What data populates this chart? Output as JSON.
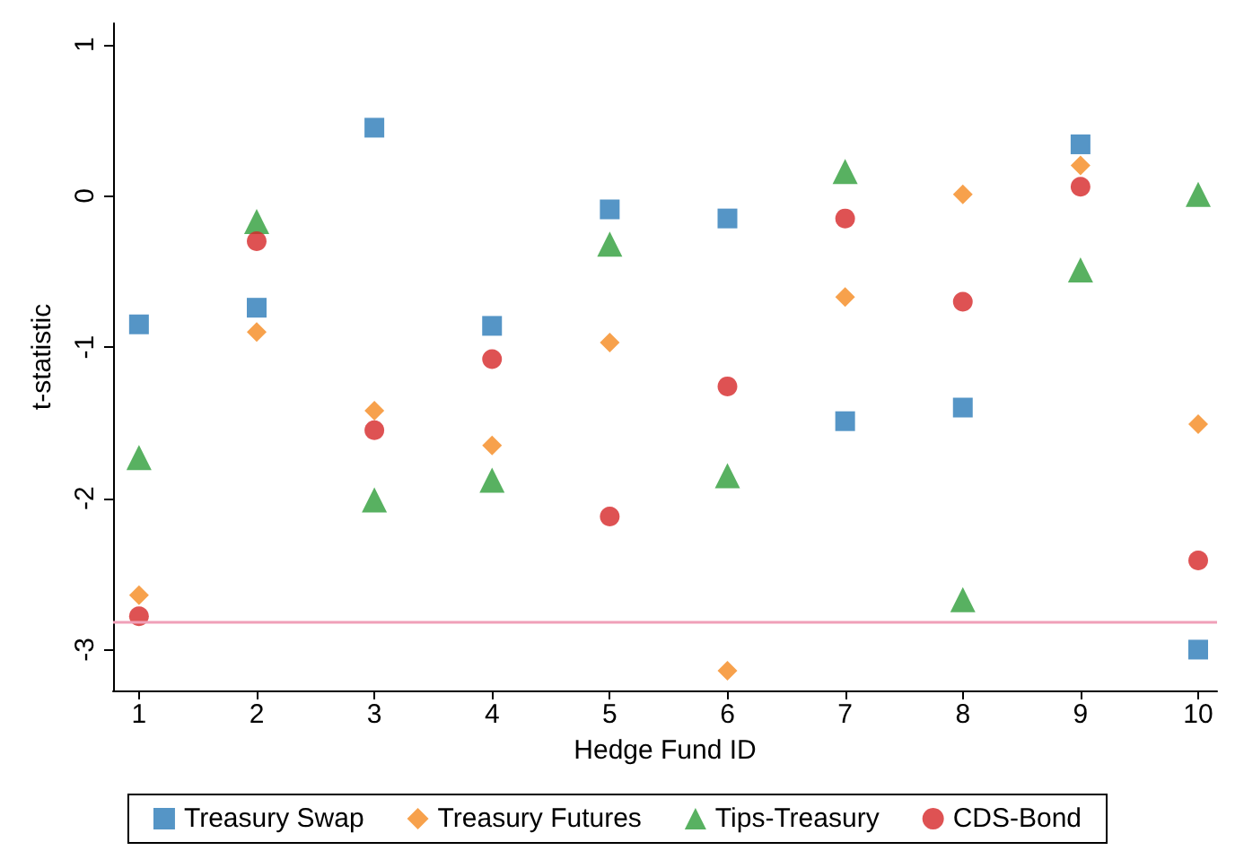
{
  "chart_data": {
    "type": "scatter",
    "xlabel": "Hedge Fund ID",
    "ylabel": "t-statistic",
    "x": [
      1,
      2,
      3,
      4,
      5,
      6,
      7,
      8,
      9,
      10
    ],
    "series": [
      {
        "name": "Treasury Swap",
        "color": "#2a7ab8",
        "marker": "square",
        "values": [
          -0.85,
          -0.74,
          0.45,
          -0.86,
          -0.09,
          -0.15,
          -1.49,
          -1.4,
          0.34,
          -3.0
        ]
      },
      {
        "name": "Treasury Futures",
        "color": "#f58a1f",
        "marker": "diamond",
        "values": [
          -2.64,
          -0.9,
          -1.42,
          -1.65,
          -0.97,
          -3.14,
          -0.67,
          0.01,
          0.2,
          -1.51
        ]
      },
      {
        "name": "Tips-Treasury",
        "color": "#2e9e3a",
        "marker": "triangle",
        "values": [
          -1.73,
          -0.17,
          -2.01,
          -1.88,
          -0.32,
          -1.85,
          0.16,
          -2.67,
          -0.49,
          0.01
        ]
      },
      {
        "name": "CDS-Bond",
        "color": "#d62728",
        "marker": "circle",
        "values": [
          -2.78,
          -0.3,
          -1.55,
          -1.08,
          -2.12,
          -1.26,
          -0.15,
          -0.7,
          0.06,
          -2.41
        ]
      }
    ],
    "xlim": [
      0.78,
      10.16
    ],
    "xticks": [
      1,
      2,
      3,
      4,
      5,
      6,
      7,
      8,
      9,
      10
    ],
    "ylim": [
      -3.27,
      1.14
    ],
    "yticks": [
      -3,
      -2,
      -1,
      0,
      1
    ],
    "ref_lines": [
      {
        "axis": "y",
        "value": -2.82,
        "color": "#f0a0b8"
      }
    ],
    "grid": false,
    "legend": "bottom"
  }
}
